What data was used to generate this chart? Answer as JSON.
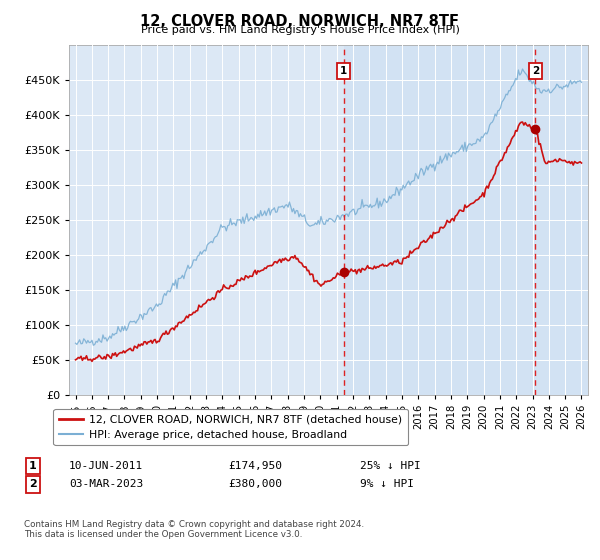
{
  "title": "12, CLOVER ROAD, NORWICH, NR7 8TF",
  "subtitle": "Price paid vs. HM Land Registry's House Price Index (HPI)",
  "hpi_label": "HPI: Average price, detached house, Broadland",
  "property_label": "12, CLOVER ROAD, NORWICH, NR7 8TF (detached house)",
  "footnote": "Contains HM Land Registry data © Crown copyright and database right 2024.\nThis data is licensed under the Open Government Licence v3.0.",
  "sale1_date": "10-JUN-2011",
  "sale1_price": "£174,950",
  "sale1_note": "25% ↓ HPI",
  "sale2_date": "03-MAR-2023",
  "sale2_price": "£380,000",
  "sale2_note": "9% ↓ HPI",
  "sale1_x": 2011.44,
  "sale1_y": 174950,
  "sale2_x": 2023.17,
  "sale2_y": 380000,
  "hpi_color": "#7bafd4",
  "property_color": "#cc1111",
  "vline_color": "#dd2222",
  "marker_color": "#aa0000",
  "background_plot": "#dce8f5",
  "ylim": [
    0,
    500000
  ],
  "xlim_start": 1994.6,
  "xlim_end": 2026.4,
  "yticks": [
    0,
    50000,
    100000,
    150000,
    200000,
    250000,
    300000,
    350000,
    400000,
    450000
  ],
  "xticks": [
    1995,
    1996,
    1997,
    1998,
    1999,
    2000,
    2001,
    2002,
    2003,
    2004,
    2005,
    2006,
    2007,
    2008,
    2009,
    2010,
    2011,
    2012,
    2013,
    2014,
    2015,
    2016,
    2017,
    2018,
    2019,
    2020,
    2021,
    2022,
    2023,
    2024,
    2025,
    2026
  ]
}
